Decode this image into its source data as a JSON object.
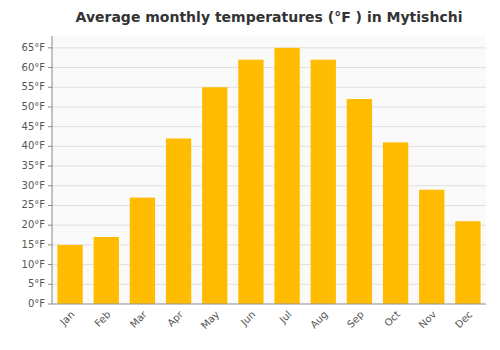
{
  "chart_data": {
    "type": "bar",
    "title": "Average monthly temperatures (°F ) in Mytishchi",
    "categories": [
      "Jan",
      "Feb",
      "Mar",
      "Apr",
      "May",
      "Jun",
      "Jul",
      "Aug",
      "Sep",
      "Oct",
      "Nov",
      "Dec"
    ],
    "values": [
      15,
      17,
      27,
      42,
      55,
      62,
      65,
      62,
      52,
      41,
      29,
      21
    ],
    "color": "#FFBC00",
    "ylim": [
      0,
      68
    ],
    "yticks": [
      {
        "value": 0,
        "label": "0°F"
      },
      {
        "value": 5,
        "label": "5°F"
      },
      {
        "value": 10,
        "label": "10°F"
      },
      {
        "value": 15,
        "label": "15°F"
      },
      {
        "value": 20,
        "label": "20°F"
      },
      {
        "value": 25,
        "label": "25°F"
      },
      {
        "value": 30,
        "label": "30°F"
      },
      {
        "value": 35,
        "label": "35°F"
      },
      {
        "value": 40,
        "label": "40°F"
      },
      {
        "value": 45,
        "label": "45°F"
      },
      {
        "value": 50,
        "label": "50°F"
      },
      {
        "value": 55,
        "label": "55°F"
      },
      {
        "value": 60,
        "label": "60°F"
      },
      {
        "value": 65,
        "label": "65°F"
      }
    ],
    "grid": true
  }
}
